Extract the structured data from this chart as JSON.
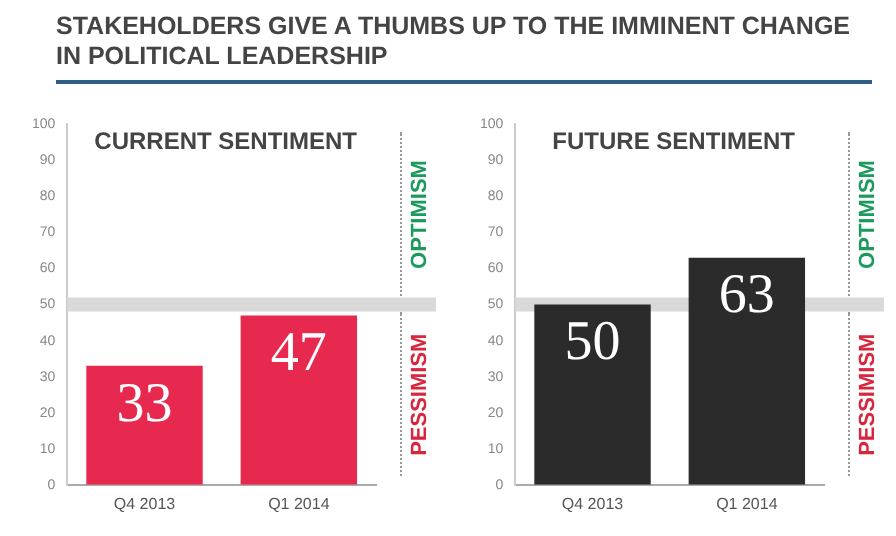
{
  "chart_data": [
    {
      "type": "bar",
      "title": "STAKEHOLDERS GIVE A THUMBS UP TO THE IMMINENT CHANGE IN POLITICAL LEADERSHIP",
      "subtitle": "CURRENT SENTIMENT",
      "categories": [
        "Q4 2013",
        "Q1 2014"
      ],
      "values": [
        33,
        47
      ],
      "color": "#e8294f",
      "ylim": [
        0,
        100
      ],
      "yticks": [
        0,
        10,
        20,
        30,
        40,
        50,
        60,
        70,
        80,
        90,
        100
      ],
      "grid": false,
      "legend": false,
      "data_labels": true,
      "ref_lines": [
        {
          "axis": "y",
          "value": 50,
          "color": "#d9d9d9"
        }
      ],
      "annotations": [
        "OPTIMISM",
        "PESSIMISM"
      ]
    },
    {
      "type": "bar",
      "subtitle": "FUTURE SENTIMENT",
      "categories": [
        "Q4 2013",
        "Q1 2014"
      ],
      "values": [
        50,
        63
      ],
      "color": "#2b2b2b",
      "ylim": [
        0,
        100
      ],
      "yticks": [
        0,
        10,
        20,
        30,
        40,
        50,
        60,
        70,
        80,
        90,
        100
      ],
      "grid": false,
      "legend": false,
      "data_labels": true,
      "ref_lines": [
        {
          "axis": "y",
          "value": 50,
          "color": "#d9d9d9"
        }
      ],
      "annotations": [
        "OPTIMISM",
        "PESSIMISM"
      ]
    }
  ]
}
